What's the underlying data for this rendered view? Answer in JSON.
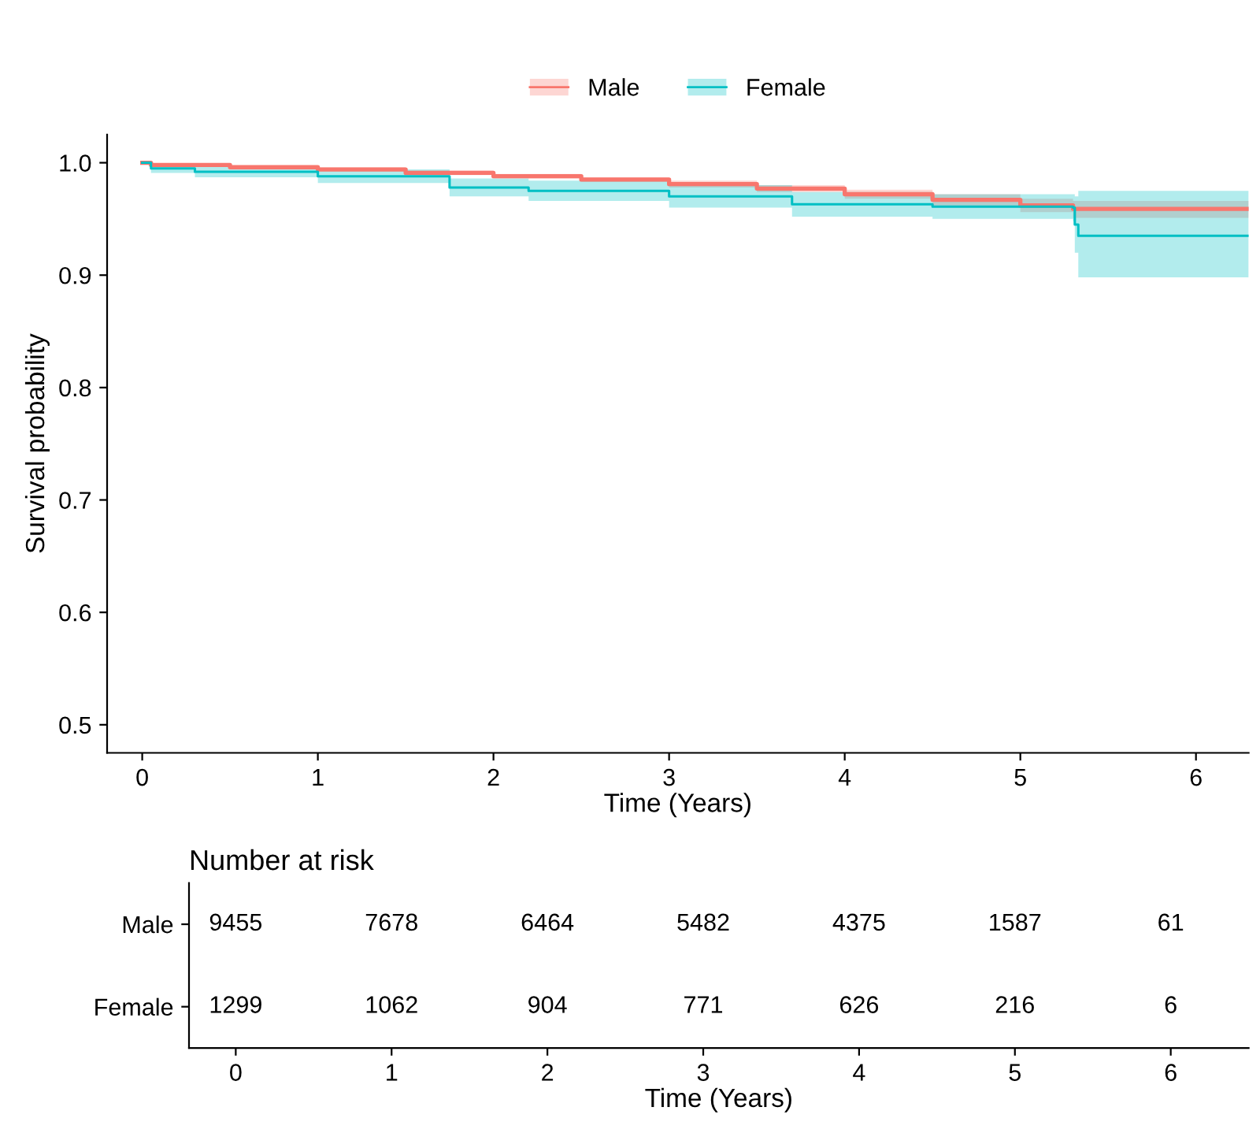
{
  "chart_data": [
    {
      "type": "step",
      "xlabel": "Time (Years)",
      "ylabel": "Survival probability",
      "xlim": [
        -0.2,
        6.3
      ],
      "ylim": [
        0.475,
        1.025
      ],
      "xticks": [
        0,
        1,
        2,
        3,
        4,
        5,
        6
      ],
      "yticks": [
        {
          "value": 0.5,
          "label": "0.5"
        },
        {
          "value": 0.6,
          "label": "0.6"
        },
        {
          "value": 0.7,
          "label": "0.7"
        },
        {
          "value": 0.8,
          "label": "0.8"
        },
        {
          "value": 0.9,
          "label": "0.9"
        },
        {
          "value": 1.0,
          "label": "1.0"
        }
      ],
      "grid": false,
      "legend": "top",
      "series": [
        {
          "name": "Male",
          "color": "#f8766d",
          "x": [
            0,
            0.05,
            0.5,
            1,
            1.5,
            2,
            2.5,
            3,
            3.5,
            4,
            4.5,
            5,
            5.3,
            6.3
          ],
          "values": [
            1.0,
            0.998,
            0.996,
            0.994,
            0.991,
            0.988,
            0.985,
            0.981,
            0.977,
            0.972,
            0.967,
            0.962,
            0.959,
            0.959
          ],
          "lower": [
            1.0,
            0.997,
            0.995,
            0.993,
            0.989,
            0.986,
            0.983,
            0.978,
            0.974,
            0.968,
            0.962,
            0.956,
            0.951,
            0.951
          ],
          "upper": [
            1.0,
            0.999,
            0.997,
            0.996,
            0.993,
            0.99,
            0.987,
            0.984,
            0.98,
            0.976,
            0.972,
            0.968,
            0.966,
            0.966
          ]
        },
        {
          "name": "Female",
          "color": "#00bfc4",
          "x": [
            0,
            0.05,
            0.3,
            1,
            1.75,
            2.2,
            3,
            3.7,
            4.5,
            5.3,
            5.31,
            5.33,
            6.3
          ],
          "values": [
            1.0,
            0.995,
            0.992,
            0.988,
            0.978,
            0.975,
            0.97,
            0.963,
            0.961,
            0.96,
            0.945,
            0.935,
            0.935
          ],
          "lower": [
            1.0,
            0.991,
            0.987,
            0.982,
            0.97,
            0.966,
            0.96,
            0.952,
            0.95,
            0.948,
            0.92,
            0.898,
            0.898
          ],
          "upper": [
            1.0,
            0.999,
            0.997,
            0.994,
            0.986,
            0.984,
            0.98,
            0.974,
            0.972,
            0.972,
            0.97,
            0.975,
            0.975
          ]
        }
      ]
    },
    {
      "type": "heatmap",
      "title": "Number at risk",
      "xlabel": "Time (Years)",
      "x": [
        0,
        1,
        2,
        3,
        4,
        5,
        6
      ],
      "xlim": [
        -0.3,
        6.5
      ],
      "xticks": [
        0,
        1,
        2,
        3,
        4,
        5,
        6
      ],
      "y_categories": [
        "Male",
        "Female"
      ],
      "data_labels": true,
      "cells": [
        [
          9455,
          7678,
          6464,
          5482,
          4375,
          1587,
          61
        ],
        [
          1299,
          1062,
          904,
          771,
          626,
          216,
          6
        ]
      ]
    }
  ]
}
